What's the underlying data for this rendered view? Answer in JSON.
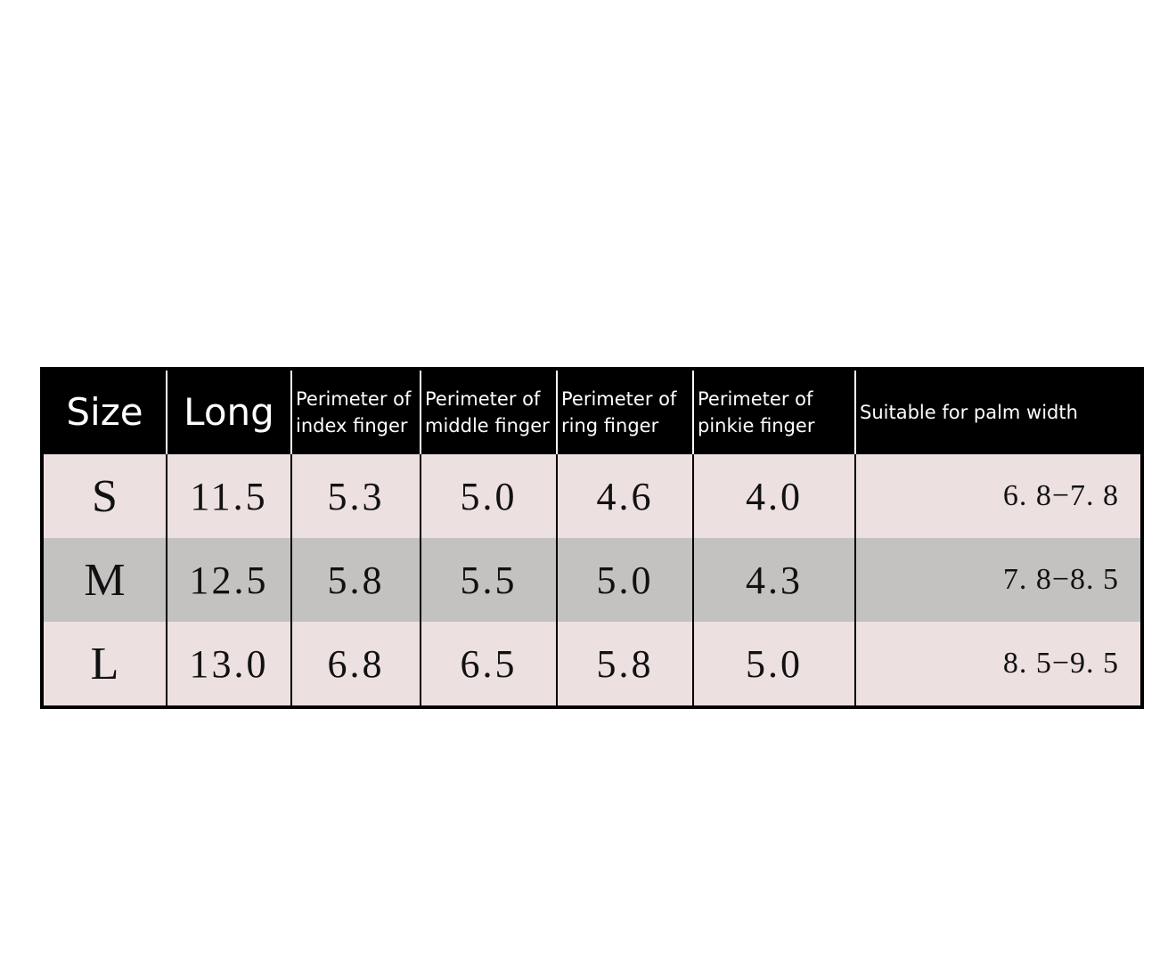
{
  "table": {
    "header": [
      "Size",
      "Long",
      "Perimeter of index finger",
      "Perimeter of middle finger",
      "Perimeter of ring finger",
      "Perimeter of pinkie finger",
      "Suitable for palm width"
    ],
    "rows": [
      [
        "S",
        "11.5",
        "5.3",
        "5.0",
        "4.6",
        "4.0",
        "6. 8−7. 8"
      ],
      [
        "M",
        "12.5",
        "5.8",
        "5.5",
        "5.0",
        "4.3",
        "7. 8−8. 5"
      ],
      [
        "L",
        "13.0",
        "6.8",
        "6.5",
        "5.8",
        "5.0",
        "8. 5−9. 5"
      ]
    ]
  }
}
